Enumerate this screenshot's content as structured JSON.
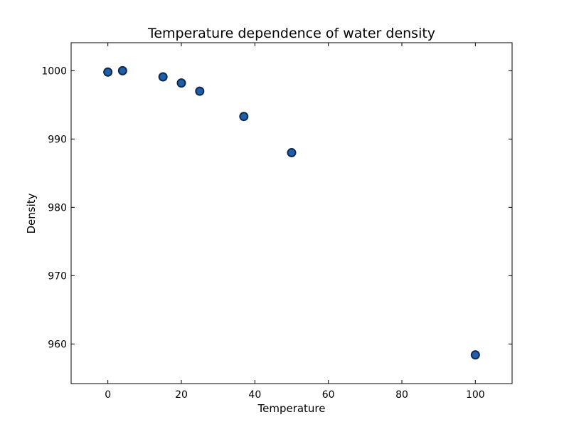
{
  "chart_data": {
    "type": "scatter",
    "title": "Temperature dependence of water density",
    "xlabel": "Temperature",
    "ylabel": "Density",
    "xlim": [
      -10,
      110
    ],
    "ylim": [
      954.2,
      1004.1
    ],
    "xticks": [
      0,
      20,
      40,
      60,
      80,
      100
    ],
    "yticks": [
      960,
      970,
      980,
      990,
      1000
    ],
    "grid": false,
    "series": [
      {
        "x": [
          0,
          4,
          15,
          20,
          25,
          37,
          50,
          100
        ],
        "y": [
          999.8,
          1000.0,
          999.1,
          998.2,
          997.0,
          993.3,
          988.0,
          958.4
        ]
      }
    ],
    "colors": {
      "marker_fill": "#1f5ea8",
      "marker_edge": "#0b2a52"
    }
  }
}
